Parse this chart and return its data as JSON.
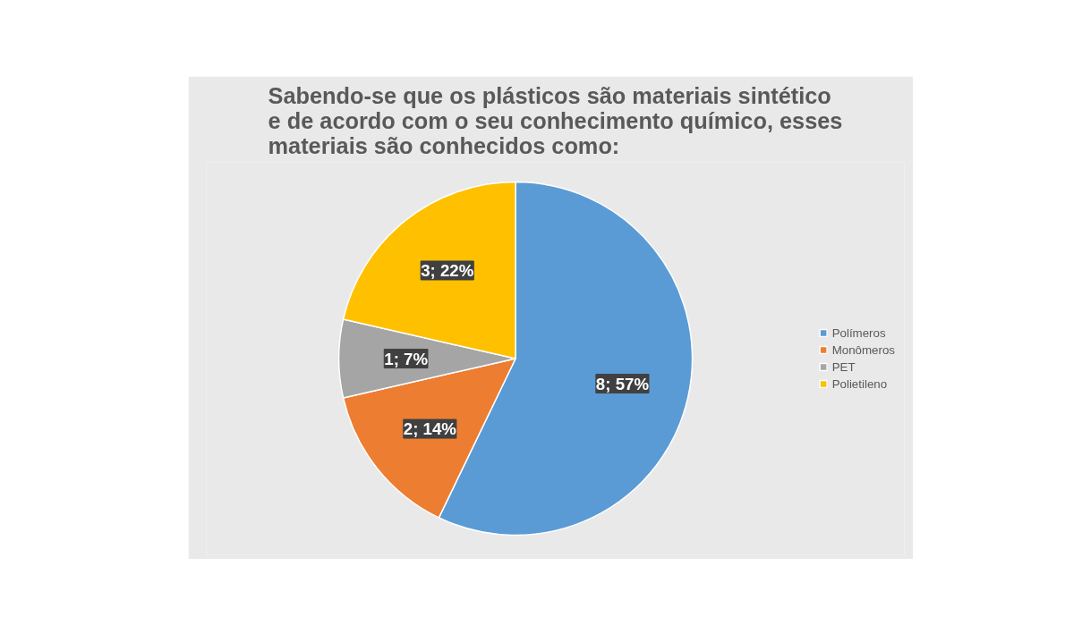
{
  "chart_data": {
    "type": "pie",
    "title": "Sabendo-se que os plásticos são materiais sintético e de acordo com o seu conhecimento químico, esses materiais são conhecidos como:",
    "categories": [
      "Polímeros",
      "Monômeros",
      "PET",
      "Polietileno"
    ],
    "values": [
      8,
      2,
      1,
      3
    ],
    "colors": [
      "#5b9bd5",
      "#ed7d31",
      "#a5a5a5",
      "#ffc000"
    ],
    "value_labels": [
      "8; 57%",
      "2; 14%",
      "1; 7%",
      "3; 22%"
    ],
    "legend": "right"
  }
}
